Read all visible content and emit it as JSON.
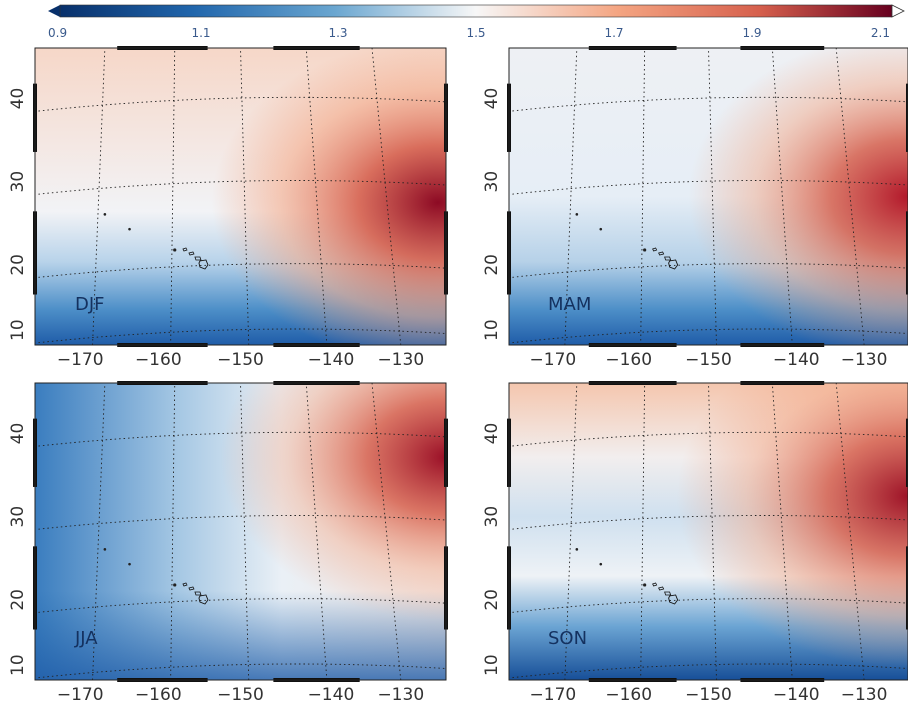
{
  "colorbar": {
    "ticks": [
      "0.9",
      "1.1",
      "1.3",
      "1.5",
      "1.7",
      "1.9",
      "2.1"
    ],
    "min": 0.9,
    "max": 2.1,
    "colors": [
      "#08306b",
      "#2166ac",
      "#4393c3",
      "#92c5de",
      "#f7f7f7",
      "#f4a582",
      "#d6604d",
      "#b2182b",
      "#67001f"
    ]
  },
  "axes": {
    "lon_ticks": [
      "−170",
      "−160",
      "−150",
      "−140",
      "−130"
    ],
    "lat_ticks": [
      "10",
      "20",
      "30",
      "40"
    ]
  },
  "panels": [
    {
      "season": "DJF",
      "pattern": "east-high-strong"
    },
    {
      "season": "MAM",
      "pattern": "east-high-moderate"
    },
    {
      "season": "JJA",
      "pattern": "northeast-high"
    },
    {
      "season": "SON",
      "pattern": "east-high-moderate"
    }
  ]
}
